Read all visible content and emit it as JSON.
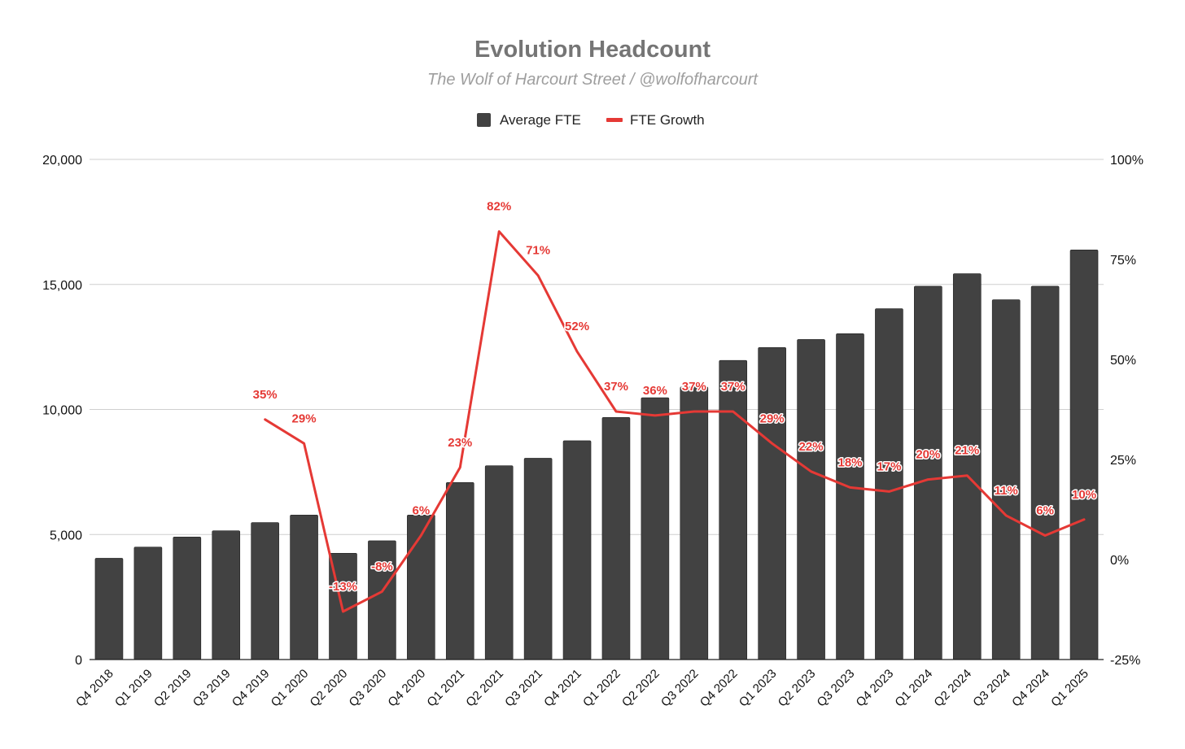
{
  "chart_data": {
    "type": "bar",
    "title": "Evolution Headcount",
    "subtitle": "The Wolf of Harcourt Street / @wolfofharcourt",
    "categories": [
      "Q4 2018",
      "Q1 2019",
      "Q2 2019",
      "Q3 2019",
      "Q4 2019",
      "Q1 2020",
      "Q2 2020",
      "Q3 2020",
      "Q4 2020",
      "Q1 2021",
      "Q2 2021",
      "Q3 2021",
      "Q4 2021",
      "Q1 2022",
      "Q2 2022",
      "Q3 2022",
      "Q4 2022",
      "Q1 2023",
      "Q2 2023",
      "Q3 2023",
      "Q4 2023",
      "Q1 2024",
      "Q2 2024",
      "Q3 2024",
      "Q4 2024",
      "Q1 2025"
    ],
    "series": [
      {
        "name": "Average FTE",
        "type": "bar",
        "axis": "left",
        "color": "#424242",
        "values": [
          4050,
          4500,
          4900,
          5150,
          5480,
          5780,
          4250,
          4750,
          5780,
          7080,
          7750,
          8050,
          8750,
          9680,
          10470,
          10900,
          11960,
          12480,
          12800,
          13030,
          14030,
          14930,
          15430,
          14390,
          14930,
          16380
        ]
      },
      {
        "name": "FTE Growth",
        "type": "line",
        "axis": "right",
        "color": "#e53935",
        "values": [
          null,
          null,
          null,
          null,
          35,
          29,
          -13,
          -8,
          6,
          23,
          82,
          71,
          52,
          37,
          36,
          37,
          37,
          29,
          22,
          18,
          17,
          20,
          21,
          11,
          6,
          10
        ],
        "labels": [
          null,
          null,
          null,
          null,
          "35%",
          "29%",
          "-13%",
          "-8%",
          "6%",
          "23%",
          "82%",
          "71%",
          "52%",
          "37%",
          "36%",
          "37%",
          "37%",
          "29%",
          "22%",
          "18%",
          "17%",
          "20%",
          "21%",
          "11%",
          "6%",
          "10%"
        ]
      }
    ],
    "y_left": {
      "min": 0,
      "max": 20000,
      "ticks": [
        0,
        5000,
        10000,
        15000,
        20000
      ],
      "tick_labels": [
        "0",
        "5,000",
        "10,000",
        "15,000",
        "20,000"
      ]
    },
    "y_right": {
      "min": -25,
      "max": 100,
      "ticks": [
        -25,
        0,
        25,
        50,
        75,
        100
      ],
      "tick_labels": [
        "-25%",
        "0%",
        "25%",
        "50%",
        "75%",
        "100%"
      ]
    },
    "legend": {
      "position": "top",
      "items": [
        "Average FTE",
        "FTE Growth"
      ]
    },
    "grid": true
  }
}
